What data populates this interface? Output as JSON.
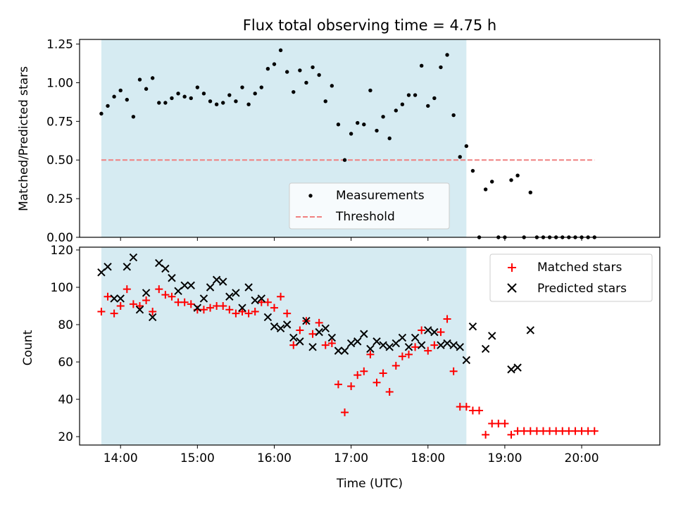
{
  "chart_data": [
    {
      "type": "scatter",
      "title": "Flux total observing time = 4.75 h",
      "ylabel": "Matched/Predicted stars",
      "xlabel": "",
      "ylim": [
        0,
        1.28
      ],
      "xlim": [
        "13:28",
        "21:01"
      ],
      "yticks": [
        "0.00",
        "0.25",
        "0.50",
        "0.75",
        "1.00",
        "1.25"
      ],
      "shaded_range": [
        "13:45",
        "18:30"
      ],
      "shade_color": "#add8e6",
      "threshold": 0.5,
      "threshold_color": "#f08080",
      "legend_position": "lower center",
      "series": [
        {
          "name": "Measurements",
          "color": "#000000",
          "marker": "dot",
          "x": [
            "13:45",
            "13:50",
            "13:55",
            "14:00",
            "14:05",
            "14:10",
            "14:15",
            "14:20",
            "14:25",
            "14:30",
            "14:35",
            "14:40",
            "14:45",
            "14:50",
            "14:55",
            "15:00",
            "15:05",
            "15:10",
            "15:15",
            "15:20",
            "15:25",
            "15:30",
            "15:35",
            "15:40",
            "15:45",
            "15:50",
            "15:55",
            "16:00",
            "16:05",
            "16:10",
            "16:15",
            "16:20",
            "16:25",
            "16:30",
            "16:35",
            "16:40",
            "16:45",
            "16:50",
            "16:55",
            "17:00",
            "17:05",
            "17:10",
            "17:15",
            "17:20",
            "17:25",
            "17:30",
            "17:35",
            "17:40",
            "17:45",
            "17:50",
            "17:55",
            "18:00",
            "18:05",
            "18:10",
            "18:15",
            "18:20",
            "18:25",
            "18:30",
            "18:35",
            "18:40",
            "18:45",
            "18:50",
            "18:55",
            "19:00",
            "19:05",
            "19:10",
            "19:15",
            "19:20",
            "19:25",
            "19:30",
            "19:35",
            "19:40",
            "19:45",
            "19:50",
            "19:55",
            "20:00",
            "20:05",
            "20:10"
          ],
          "values": [
            0.8,
            0.85,
            0.91,
            0.95,
            0.89,
            0.78,
            1.02,
            0.96,
            1.03,
            0.87,
            0.87,
            0.9,
            0.93,
            0.91,
            0.9,
            0.97,
            0.93,
            0.88,
            0.86,
            0.87,
            0.92,
            0.88,
            0.97,
            0.86,
            0.93,
            0.97,
            1.09,
            1.12,
            1.21,
            1.07,
            0.94,
            1.08,
            1.0,
            1.1,
            1.05,
            0.88,
            0.98,
            0.73,
            0.5,
            0.67,
            0.74,
            0.73,
            0.95,
            0.69,
            0.78,
            0.64,
            0.82,
            0.86,
            0.92,
            0.92,
            1.11,
            0.85,
            0.9,
            1.1,
            1.18,
            0.79,
            0.52,
            0.59,
            0.43,
            0.0,
            0.31,
            0.36,
            0.0,
            0.0,
            0.37,
            0.4,
            0.0,
            0.29,
            0.0,
            0.0,
            0.0,
            0.0,
            0.0,
            0.0,
            0.0,
            0.0,
            0.0,
            0.0
          ]
        },
        {
          "name": "Threshold",
          "color": "#f08080",
          "marker": "dashed-line",
          "x": [
            "13:45",
            "20:10"
          ],
          "values": [
            0.5,
            0.5
          ]
        }
      ]
    },
    {
      "type": "scatter",
      "title": "",
      "ylabel": "Count",
      "xlabel": "Time (UTC)",
      "ylim": [
        15.5,
        121.5
      ],
      "xlim": [
        "13:28",
        "21:01"
      ],
      "yticks": [
        "20",
        "40",
        "60",
        "80",
        "100",
        "120"
      ],
      "xticks": [
        "14:00",
        "15:00",
        "16:00",
        "17:00",
        "18:00",
        "19:00",
        "20:00"
      ],
      "shaded_range": [
        "13:45",
        "18:30"
      ],
      "shade_color": "#add8e6",
      "legend_position": "upper right",
      "series": [
        {
          "name": "Matched stars",
          "color": "#ff0000",
          "marker": "plus",
          "x": [
            "13:45",
            "13:50",
            "13:55",
            "14:00",
            "14:05",
            "14:10",
            "14:15",
            "14:20",
            "14:25",
            "14:30",
            "14:35",
            "14:40",
            "14:45",
            "14:50",
            "14:55",
            "15:00",
            "15:05",
            "15:10",
            "15:15",
            "15:20",
            "15:25",
            "15:30",
            "15:35",
            "15:40",
            "15:45",
            "15:50",
            "15:55",
            "16:00",
            "16:05",
            "16:10",
            "16:15",
            "16:20",
            "16:25",
            "16:30",
            "16:35",
            "16:40",
            "16:45",
            "16:50",
            "16:55",
            "17:00",
            "17:05",
            "17:10",
            "17:15",
            "17:20",
            "17:25",
            "17:30",
            "17:35",
            "17:40",
            "17:45",
            "17:50",
            "17:55",
            "18:00",
            "18:05",
            "18:10",
            "18:15",
            "18:20",
            "18:25",
            "18:30",
            "18:35",
            "18:40",
            "18:45",
            "18:50",
            "18:55",
            "19:00",
            "19:05",
            "19:10",
            "19:15",
            "19:20",
            "19:25",
            "19:30",
            "19:35",
            "19:40",
            "19:45",
            "19:50",
            "19:55",
            "20:00",
            "20:05",
            "20:10"
          ],
          "values": [
            87,
            95,
            86,
            90,
            99,
            91,
            90,
            93,
            87,
            99,
            96,
            95,
            92,
            92,
            91,
            88,
            88,
            89,
            90,
            90,
            88,
            86,
            87,
            86,
            87,
            92,
            92,
            89,
            95,
            86,
            69,
            77,
            82,
            75,
            81,
            69,
            70,
            48,
            33,
            47,
            53,
            55,
            64,
            49,
            54,
            44,
            58,
            63,
            64,
            68,
            77,
            66,
            69,
            76,
            83,
            55,
            36,
            36,
            34,
            34,
            21,
            27,
            27,
            27,
            21,
            23,
            23,
            23,
            23,
            23,
            23,
            23,
            23,
            23,
            23,
            23,
            23,
            23
          ]
        },
        {
          "name": "Predicted stars",
          "color": "#000000",
          "marker": "cross",
          "x": [
            "13:45",
            "13:50",
            "13:55",
            "14:00",
            "14:05",
            "14:10",
            "14:15",
            "14:20",
            "14:25",
            "14:30",
            "14:35",
            "14:40",
            "14:45",
            "14:50",
            "14:55",
            "15:00",
            "15:05",
            "15:10",
            "15:15",
            "15:20",
            "15:25",
            "15:30",
            "15:35",
            "15:40",
            "15:45",
            "15:50",
            "15:55",
            "16:00",
            "16:05",
            "16:10",
            "16:15",
            "16:20",
            "16:25",
            "16:30",
            "16:35",
            "16:40",
            "16:45",
            "16:50",
            "16:55",
            "17:00",
            "17:05",
            "17:10",
            "17:15",
            "17:20",
            "17:25",
            "17:30",
            "17:35",
            "17:40",
            "17:45",
            "17:50",
            "17:55",
            "18:00",
            "18:05",
            "18:10",
            "18:15",
            "18:20",
            "18:25",
            "18:30",
            "18:35",
            "18:45",
            "18:50",
            "19:05",
            "19:10",
            "19:20"
          ],
          "values": [
            108,
            111,
            94,
            94,
            111,
            116,
            88,
            97,
            84,
            113,
            110,
            105,
            98,
            101,
            101,
            89,
            94,
            100,
            104,
            103,
            95,
            97,
            89,
            100,
            93,
            94,
            84,
            79,
            78,
            80,
            73,
            71,
            82,
            68,
            76,
            78,
            73,
            66,
            66,
            70,
            71,
            75,
            67,
            71,
            69,
            68,
            70,
            73,
            68,
            73,
            69,
            77,
            76,
            69,
            70,
            69,
            68,
            61,
            79,
            67,
            74,
            56,
            57,
            77
          ]
        }
      ]
    }
  ]
}
